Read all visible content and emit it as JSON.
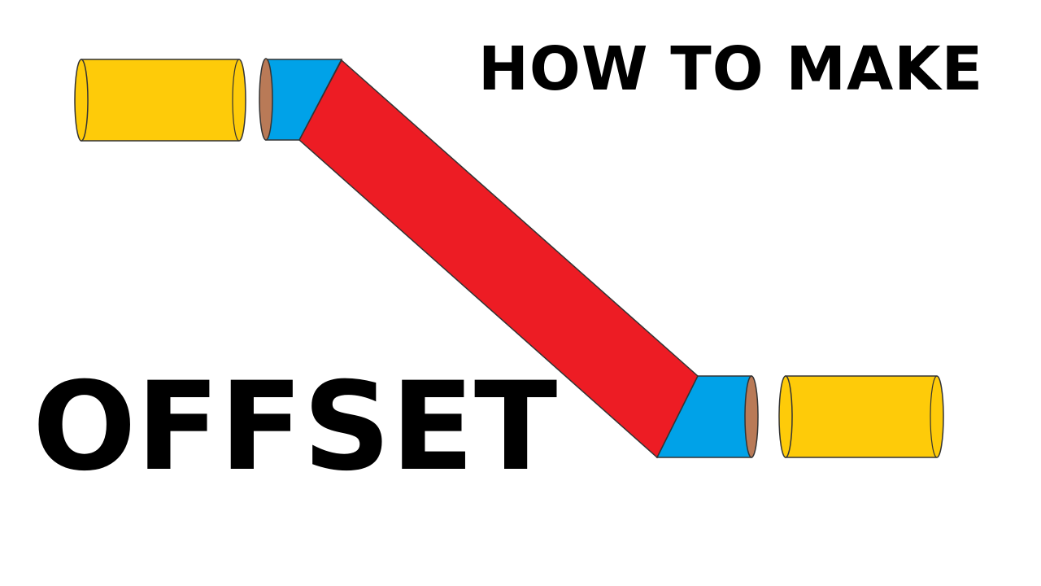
{
  "title_top": "HOW TO MAKE",
  "title_main": "OFFSET",
  "colors": {
    "straight_pipe": "#FECB09",
    "fitting": "#00A2E8",
    "offset_pipe": "#ED1C24",
    "pipe_end": "#B97A57",
    "outline": "#333333",
    "text": "#000000"
  }
}
